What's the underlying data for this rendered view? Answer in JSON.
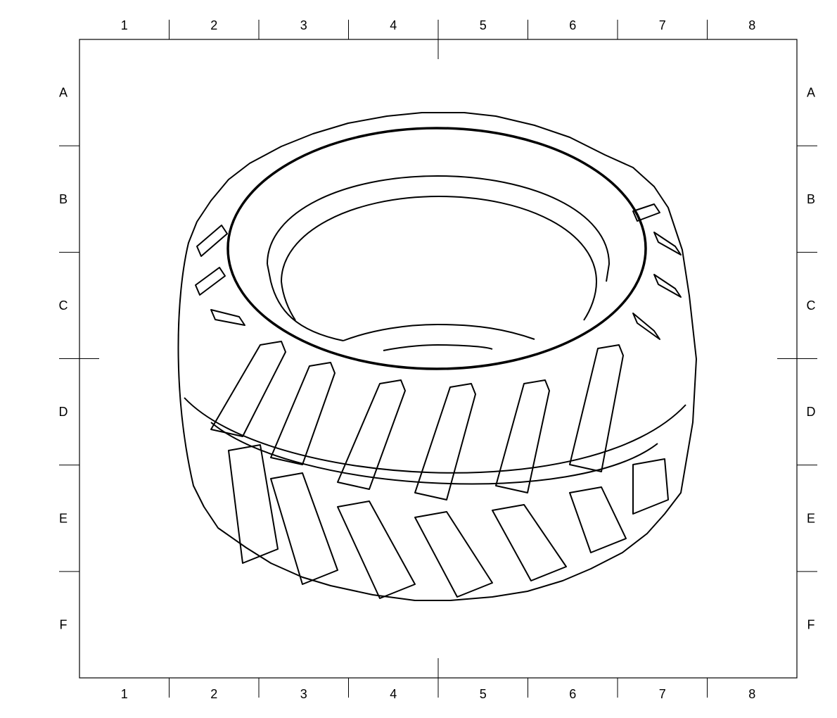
{
  "drawing": {
    "subject": "tractor tire",
    "line_color": "#000000",
    "background": "#ffffff"
  },
  "frame": {
    "columns": [
      "1",
      "2",
      "3",
      "4",
      "5",
      "6",
      "7",
      "8"
    ],
    "rows": [
      "A",
      "B",
      "C",
      "D",
      "E",
      "F"
    ]
  }
}
